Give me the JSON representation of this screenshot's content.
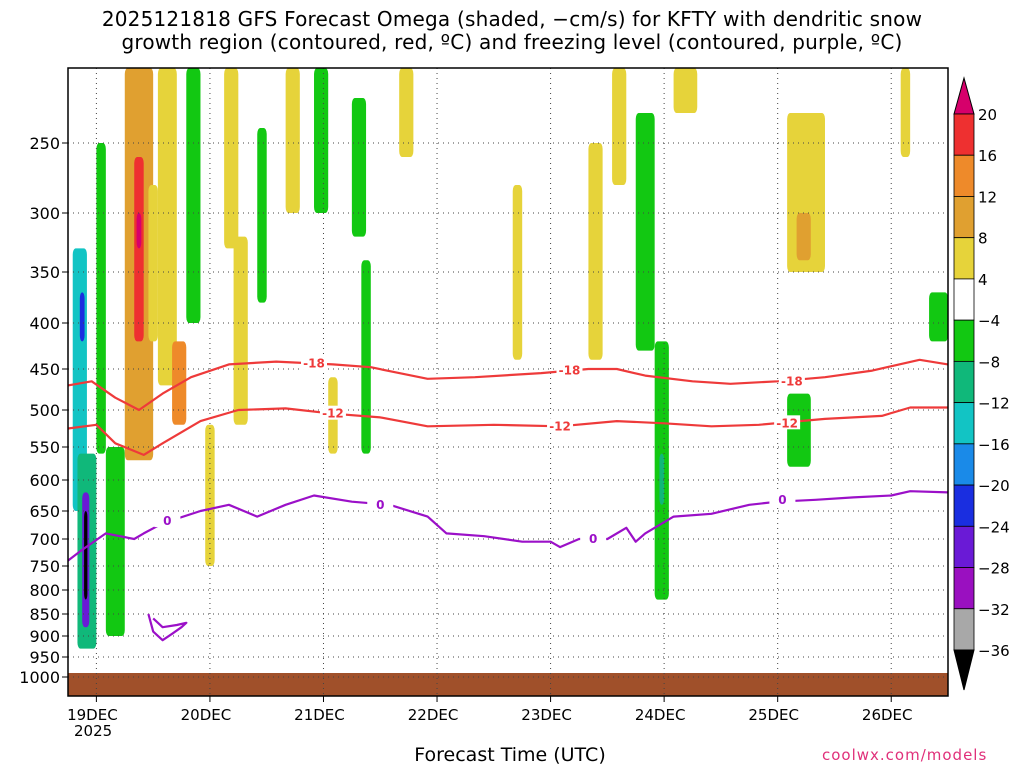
{
  "title": {
    "line1": "2025121818 GFS Forecast Omega (shaded, −cm/s) for KFTY with dendritic snow",
    "line2": "growth region (contoured, red, ºC) and freezing level (contoured, purple, ºC)"
  },
  "xlabel": "Forecast Time (UTC)",
  "credit": "coolwx.com/models",
  "year_label": "2025",
  "chart_data": {
    "type": "heatmap",
    "x_units": "hours since 2025-12-18 18Z",
    "xlim": [
      0,
      186
    ],
    "x_ticks": [
      {
        "x": 6,
        "label": "19DEC"
      },
      {
        "x": 30,
        "label": "20DEC"
      },
      {
        "x": 54,
        "label": "21DEC"
      },
      {
        "x": 78,
        "label": "22DEC"
      },
      {
        "x": 102,
        "label": "23DEC"
      },
      {
        "x": 126,
        "label": "24DEC"
      },
      {
        "x": 150,
        "label": "25DEC"
      },
      {
        "x": 174,
        "label": "26DEC"
      }
    ],
    "ylabel": "Pressure (hPa)",
    "ylim": [
      1000,
      200
    ],
    "y_ticks": [
      {
        "p": 250,
        "label": "250"
      },
      {
        "p": 300,
        "label": "300"
      },
      {
        "p": 350,
        "label": "350"
      },
      {
        "p": 400,
        "label": "400"
      },
      {
        "p": 450,
        "label": "450"
      },
      {
        "p": 500,
        "label": "500"
      },
      {
        "p": 550,
        "label": "550"
      },
      {
        "p": 600,
        "label": "600"
      },
      {
        "p": 650,
        "label": "650"
      },
      {
        "p": 700,
        "label": "700"
      },
      {
        "p": 750,
        "label": "750"
      },
      {
        "p": 800,
        "label": "800"
      },
      {
        "p": 850,
        "label": "850"
      },
      {
        "p": 900,
        "label": "900"
      },
      {
        "p": 950,
        "label": "950"
      },
      {
        "p": 1000,
        "label": "1000"
      }
    ],
    "colorbar": {
      "levels": [
        {
          "from": 20,
          "to": 24,
          "color": "#d6006b"
        },
        {
          "from": 16,
          "to": 20,
          "color": "#ee3030"
        },
        {
          "from": 12,
          "to": 16,
          "color": "#ee8a2a"
        },
        {
          "from": 8,
          "to": 12,
          "color": "#e0a030"
        },
        {
          "from": 4,
          "to": 8,
          "color": "#e6d33a"
        },
        {
          "from": -4,
          "to": 4,
          "color": "#ffffff"
        },
        {
          "from": -8,
          "to": -4,
          "color": "#12c812"
        },
        {
          "from": -12,
          "to": -8,
          "color": "#10b87a"
        },
        {
          "from": -16,
          "to": -12,
          "color": "#12c4c4"
        },
        {
          "from": -20,
          "to": -16,
          "color": "#1a8ae8"
        },
        {
          "from": -24,
          "to": -20,
          "color": "#1a2ee0"
        },
        {
          "from": -28,
          "to": -24,
          "color": "#6a1ad6"
        },
        {
          "from": -32,
          "to": -28,
          "color": "#9a10c0"
        },
        {
          "from": -36,
          "to": -32,
          "color": "#a8a8a8"
        },
        {
          "from": -40,
          "to": -36,
          "color": "#000000"
        }
      ],
      "labels": [
        "20",
        "16",
        "12",
        "8",
        "4",
        "−4",
        "−8",
        "−12",
        "−16",
        "−20",
        "−24",
        "−28",
        "−32",
        "−36"
      ],
      "label_values": [
        20,
        16,
        12,
        8,
        4,
        -4,
        -8,
        -12,
        -16,
        -20,
        -24,
        -28,
        -32,
        -36
      ]
    },
    "omega_regions": [
      {
        "x0": 1,
        "x1": 4,
        "p0": 330,
        "p1": 650,
        "value": -14
      },
      {
        "x0": 2.5,
        "x1": 3.5,
        "p0": 370,
        "p1": 420,
        "value": -22
      },
      {
        "x0": 2,
        "x1": 6,
        "p0": 560,
        "p1": 930,
        "value": -10
      },
      {
        "x0": 3,
        "x1": 4.5,
        "p0": 620,
        "p1": 880,
        "value": -26
      },
      {
        "x0": 3.4,
        "x1": 4.1,
        "p0": 650,
        "p1": 820,
        "value": -40
      },
      {
        "x0": 6,
        "x1": 8,
        "p0": 250,
        "p1": 560,
        "value": -6
      },
      {
        "x0": 8,
        "x1": 12,
        "p0": 550,
        "p1": 900,
        "value": -6
      },
      {
        "x0": 12,
        "x1": 18,
        "p0": 200,
        "p1": 570,
        "value": 10
      },
      {
        "x0": 14,
        "x1": 16,
        "p0": 260,
        "p1": 420,
        "value": 18
      },
      {
        "x0": 14.5,
        "x1": 15.5,
        "p0": 300,
        "p1": 330,
        "value": 22
      },
      {
        "x0": 17,
        "x1": 19,
        "p0": 280,
        "p1": 420,
        "value": 6
      },
      {
        "x0": 19,
        "x1": 23,
        "p0": 200,
        "p1": 470,
        "value": 6
      },
      {
        "x0": 22,
        "x1": 25,
        "p0": 420,
        "p1": 520,
        "value": 14
      },
      {
        "x0": 25,
        "x1": 28,
        "p0": 200,
        "p1": 400,
        "value": -6
      },
      {
        "x0": 29,
        "x1": 31,
        "p0": 520,
        "p1": 750,
        "value": 5
      },
      {
        "x0": 33,
        "x1": 36,
        "p0": 200,
        "p1": 330,
        "value": 5
      },
      {
        "x0": 35,
        "x1": 38,
        "p0": 320,
        "p1": 520,
        "value": 5
      },
      {
        "x0": 40,
        "x1": 42,
        "p0": 240,
        "p1": 380,
        "value": -6
      },
      {
        "x0": 46,
        "x1": 49,
        "p0": 200,
        "p1": 300,
        "value": 5
      },
      {
        "x0": 52,
        "x1": 55,
        "p0": 200,
        "p1": 300,
        "value": -6
      },
      {
        "x0": 55,
        "x1": 57,
        "p0": 460,
        "p1": 560,
        "value": 5
      },
      {
        "x0": 60,
        "x1": 63,
        "p0": 220,
        "p1": 320,
        "value": -6
      },
      {
        "x0": 62,
        "x1": 64,
        "p0": 340,
        "p1": 560,
        "value": -6
      },
      {
        "x0": 70,
        "x1": 73,
        "p0": 200,
        "p1": 260,
        "value": 5
      },
      {
        "x0": 94,
        "x1": 96,
        "p0": 280,
        "p1": 440,
        "value": 5
      },
      {
        "x0": 110,
        "x1": 113,
        "p0": 250,
        "p1": 440,
        "value": 5
      },
      {
        "x0": 115,
        "x1": 118,
        "p0": 200,
        "p1": 280,
        "value": 5
      },
      {
        "x0": 120,
        "x1": 124,
        "p0": 230,
        "p1": 430,
        "value": -6
      },
      {
        "x0": 124,
        "x1": 127,
        "p0": 420,
        "p1": 820,
        "value": -6
      },
      {
        "x0": 125,
        "x1": 126,
        "p0": 560,
        "p1": 640,
        "value": -10
      },
      {
        "x0": 128,
        "x1": 133,
        "p0": 200,
        "p1": 230,
        "value": 5
      },
      {
        "x0": 152,
        "x1": 160,
        "p0": 230,
        "p1": 350,
        "value": 5
      },
      {
        "x0": 154,
        "x1": 157,
        "p0": 300,
        "p1": 340,
        "value": 10
      },
      {
        "x0": 152,
        "x1": 157,
        "p0": 480,
        "p1": 580,
        "value": -6
      },
      {
        "x0": 176,
        "x1": 178,
        "p0": 200,
        "p1": 260,
        "value": 5
      },
      {
        "x0": 182,
        "x1": 186,
        "p0": 370,
        "p1": 420,
        "value": -6
      }
    ],
    "ground": {
      "p_top": 990,
      "color": "#a0502a"
    },
    "contours": [
      {
        "name": "isotherm -18",
        "label": "-18",
        "color": "#ee3a3a",
        "points": [
          [
            0,
            470
          ],
          [
            5,
            465
          ],
          [
            10,
            485
          ],
          [
            15,
            500
          ],
          [
            20,
            480
          ],
          [
            26,
            460
          ],
          [
            34,
            445
          ],
          [
            44,
            442
          ],
          [
            56,
            445
          ],
          [
            64,
            448
          ],
          [
            70,
            455
          ],
          [
            76,
            462
          ],
          [
            86,
            460
          ],
          [
            100,
            455
          ],
          [
            110,
            450
          ],
          [
            116,
            450
          ],
          [
            122,
            458
          ],
          [
            132,
            465
          ],
          [
            140,
            468
          ],
          [
            150,
            465
          ],
          [
            160,
            460
          ],
          [
            170,
            452
          ],
          [
            180,
            440
          ],
          [
            186,
            445
          ]
        ],
        "label_at": [
          [
            52,
            444
          ],
          [
            106,
            452
          ],
          [
            153,
            465
          ]
        ]
      },
      {
        "name": "isotherm -12",
        "label": "-12",
        "color": "#ee3a3a",
        "points": [
          [
            0,
            525
          ],
          [
            6,
            520
          ],
          [
            10,
            545
          ],
          [
            16,
            562
          ],
          [
            20,
            545
          ],
          [
            28,
            515
          ],
          [
            36,
            500
          ],
          [
            46,
            498
          ],
          [
            56,
            505
          ],
          [
            66,
            510
          ],
          [
            76,
            522
          ],
          [
            90,
            520
          ],
          [
            104,
            522
          ],
          [
            116,
            515
          ],
          [
            126,
            518
          ],
          [
            136,
            522
          ],
          [
            146,
            520
          ],
          [
            160,
            512
          ],
          [
            172,
            508
          ],
          [
            178,
            497
          ],
          [
            186,
            497
          ]
        ],
        "label_at": [
          [
            56,
            505
          ],
          [
            104,
            522
          ],
          [
            152,
            518
          ]
        ]
      },
      {
        "name": "freezing level",
        "label": "0",
        "color": "#9b10c8",
        "points": [
          [
            0,
            740
          ],
          [
            3,
            720
          ],
          [
            8,
            690
          ],
          [
            14,
            700
          ],
          [
            16,
            690
          ],
          [
            20,
            672
          ],
          [
            28,
            650
          ],
          [
            34,
            640
          ],
          [
            40,
            660
          ],
          [
            46,
            640
          ],
          [
            52,
            625
          ],
          [
            60,
            635
          ],
          [
            68,
            640
          ],
          [
            76,
            660
          ],
          [
            80,
            690
          ],
          [
            88,
            695
          ],
          [
            96,
            705
          ],
          [
            102,
            705
          ],
          [
            104,
            715
          ],
          [
            108,
            700
          ],
          [
            114,
            700
          ],
          [
            118,
            680
          ],
          [
            120,
            705
          ],
          [
            122,
            690
          ],
          [
            128,
            660
          ],
          [
            136,
            655
          ],
          [
            144,
            640
          ],
          [
            150,
            635
          ],
          [
            158,
            632
          ],
          [
            166,
            628
          ],
          [
            174,
            625
          ],
          [
            178,
            618
          ],
          [
            186,
            620
          ]
        ],
        "label_at": [
          [
            21,
            668
          ],
          [
            66,
            640
          ],
          [
            111,
            700
          ],
          [
            151,
            632
          ]
        ]
      },
      {
        "name": "freezing level lower loop",
        "label": "",
        "color": "#9b10c8",
        "points": [
          [
            17,
            850
          ],
          [
            18,
            890
          ],
          [
            20,
            910
          ],
          [
            22,
            895
          ],
          [
            24,
            880
          ],
          [
            25,
            870
          ],
          [
            23,
            875
          ],
          [
            20,
            880
          ],
          [
            18,
            860
          ]
        ],
        "label_at": []
      }
    ]
  }
}
